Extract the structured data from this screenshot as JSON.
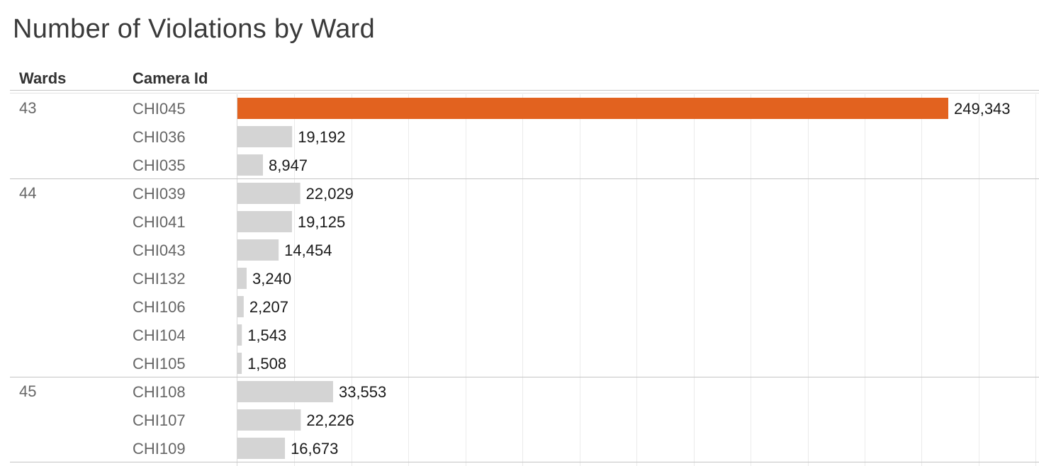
{
  "title": "Number of Violations by Ward",
  "headers": {
    "wards": "Wards",
    "camera_id": "Camera Id"
  },
  "colors": {
    "highlight": "#e2621f",
    "bar": "#d4d4d4",
    "grid": "#ebebeb",
    "separator": "#c4c4c4"
  },
  "chart_data": {
    "type": "bar",
    "orientation": "horizontal",
    "title": "Number of Violations by Ward",
    "row_headers": [
      "Wards",
      "Camera Id"
    ],
    "groups": [
      {
        "ward": "43",
        "rows": [
          {
            "camera_id": "CHI045",
            "value": 249343,
            "label": "249,343",
            "highlight": true
          },
          {
            "camera_id": "CHI036",
            "value": 19192,
            "label": "19,192"
          },
          {
            "camera_id": "CHI035",
            "value": 8947,
            "label": "8,947"
          }
        ]
      },
      {
        "ward": "44",
        "rows": [
          {
            "camera_id": "CHI039",
            "value": 22029,
            "label": "22,029"
          },
          {
            "camera_id": "CHI041",
            "value": 19125,
            "label": "19,125"
          },
          {
            "camera_id": "CHI043",
            "value": 14454,
            "label": "14,454"
          },
          {
            "camera_id": "CHI132",
            "value": 3240,
            "label": "3,240"
          },
          {
            "camera_id": "CHI106",
            "value": 2207,
            "label": "2,207"
          },
          {
            "camera_id": "CHI104",
            "value": 1543,
            "label": "1,543"
          },
          {
            "camera_id": "CHI105",
            "value": 1508,
            "label": "1,508"
          }
        ]
      },
      {
        "ward": "45",
        "rows": [
          {
            "camera_id": "CHI108",
            "value": 33553,
            "label": "33,553"
          },
          {
            "camera_id": "CHI107",
            "value": 22226,
            "label": "22,226"
          },
          {
            "camera_id": "CHI109",
            "value": 16673,
            "label": "16,673"
          }
        ]
      }
    ],
    "xlim": [
      0,
      280000
    ],
    "grid_step": 20000,
    "grid": true
  }
}
